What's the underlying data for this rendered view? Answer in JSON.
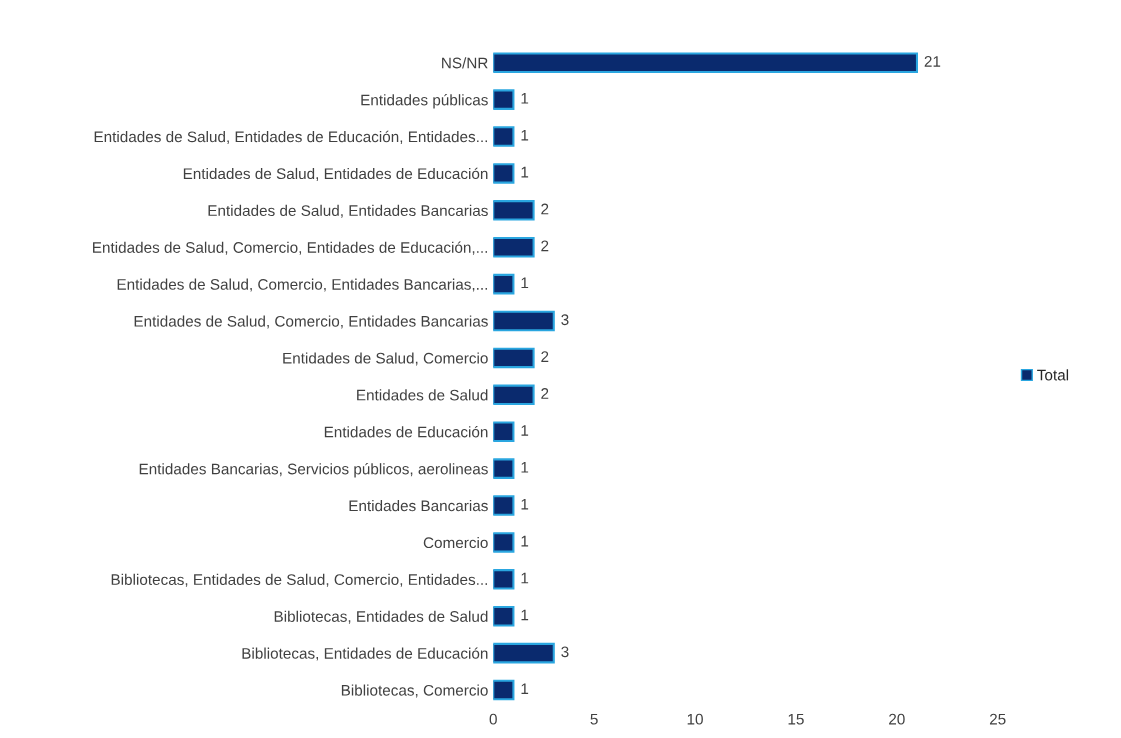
{
  "chart_data": {
    "type": "bar",
    "orientation": "horizontal",
    "categories": [
      "NS/NR",
      "Entidades públicas",
      "Entidades de Salud, Entidades de Educación, Entidades...",
      "Entidades de Salud, Entidades de Educación",
      "Entidades de Salud, Entidades Bancarias",
      "Entidades de Salud, Comercio, Entidades de Educación,...",
      "Entidades de Salud, Comercio, Entidades Bancarias,...",
      "Entidades de Salud, Comercio, Entidades Bancarias",
      "Entidades de Salud, Comercio",
      "Entidades de Salud",
      "Entidades de Educación",
      "Entidades Bancarias, Servicios públicos, aerolineas",
      "Entidades Bancarias",
      "Comercio",
      "Bibliotecas, Entidades de Salud, Comercio, Entidades...",
      "Bibliotecas, Entidades de Salud",
      "Bibliotecas, Entidades de Educación",
      "Bibliotecas, Comercio"
    ],
    "series": [
      {
        "name": "Total",
        "color": "#0a2a6e",
        "values": [
          21,
          1,
          1,
          1,
          2,
          2,
          1,
          3,
          2,
          2,
          1,
          1,
          1,
          1,
          1,
          1,
          3,
          1
        ]
      }
    ],
    "xlim": [
      0,
      25
    ],
    "xticks": [
      0,
      5,
      10,
      15,
      20,
      25
    ],
    "data_labels": true,
    "grid": false,
    "legend": "right"
  }
}
